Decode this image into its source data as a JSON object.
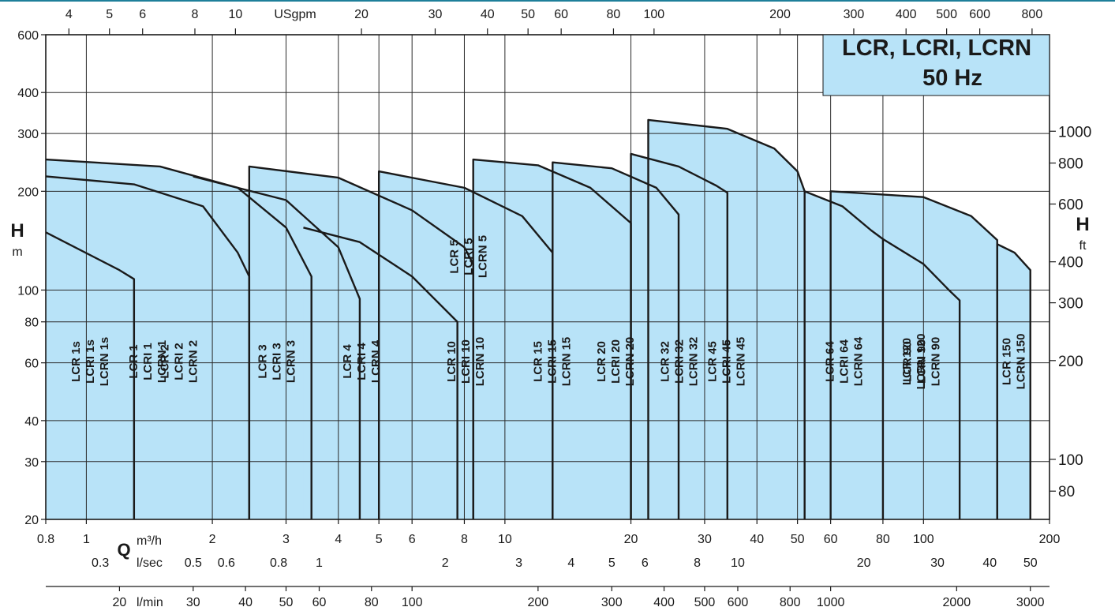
{
  "chart_data": {
    "type": "area",
    "title": [
      "LCR, LCRI, LCRN",
      "50 Hz"
    ],
    "colors": {
      "fill": "#b8e3f8",
      "stroke": "#1a1a1a",
      "grid": "#2a2a2a",
      "title_box": "#b8e3f8",
      "top_rule": "#1e7f9a"
    },
    "grid": true,
    "y_left": {
      "label": "H",
      "unit": "m",
      "scale": "log",
      "range": [
        20,
        600
      ],
      "ticks": [
        600,
        400,
        300,
        200,
        100,
        80,
        60,
        40,
        30,
        20
      ]
    },
    "y_right": {
      "label": "H",
      "unit": "ft",
      "ticks": [
        1000,
        800,
        600,
        400,
        300,
        200,
        100,
        80
      ]
    },
    "x_m3h": {
      "label": "Q",
      "unit": "m³/h",
      "scale": "log",
      "range": [
        0.8,
        200
      ],
      "ticks": [
        0.8,
        1,
        2,
        3,
        4,
        5,
        6,
        8,
        10,
        20,
        30,
        40,
        50,
        60,
        80,
        100,
        200
      ]
    },
    "x_usgpm": {
      "unit": "USgpm",
      "ticks": [
        4,
        5,
        6,
        8,
        10,
        20,
        30,
        40,
        50,
        60,
        80,
        100,
        200,
        300,
        400,
        500,
        600,
        800
      ]
    },
    "x_lsec": {
      "unit": "l/sec",
      "ticks": [
        0.3,
        0.5,
        0.6,
        0.8,
        1,
        2,
        3,
        4,
        5,
        6,
        8,
        10,
        20,
        30,
        40,
        50
      ]
    },
    "x_lmin": {
      "unit": "l/min",
      "ticks": [
        20,
        30,
        40,
        50,
        60,
        80,
        100,
        200,
        300,
        400,
        500,
        600,
        800,
        1000,
        2000,
        3000
      ]
    },
    "series": [
      {
        "name": "LCR 1s / LCRI 1s / LCRN 1s",
        "labels": [
          "LCR 1s",
          "LCRI 1s",
          "LCRN 1s"
        ],
        "q": [
          0.8,
          1.2,
          1.3,
          1.3
        ],
        "h": [
          150,
          115,
          108,
          20
        ]
      },
      {
        "name": "LCR 1 / LCRI 1 / LCRN 1",
        "labels": [
          "LCR 1",
          "LCRI 1",
          "LCRN 1"
        ],
        "q": [
          0.8,
          1.3,
          1.9,
          2.3,
          2.45,
          2.45
        ],
        "h": [
          222,
          210,
          180,
          130,
          110,
          20
        ]
      },
      {
        "name": "LCR 2 / LCRI 2 / LCRN 2",
        "labels": [
          "LCR 2",
          "LCRI 2",
          "LCRN 2"
        ],
        "q": [
          0.8,
          1.5,
          2.3,
          3.0,
          3.45,
          3.45
        ],
        "h": [
          250,
          238,
          205,
          155,
          110,
          20
        ]
      },
      {
        "name": "LCR 3 / LCRI 3 / LCRN 3",
        "labels": [
          "LCR 3",
          "LCRI 3",
          "LCRN 3"
        ],
        "q": [
          1.8,
          3.0,
          4.0,
          4.5,
          4.5
        ],
        "h": [
          222,
          188,
          135,
          94,
          20
        ]
      },
      {
        "name": "LCR 4 / LCRI 4 / LCRN 4",
        "labels": [
          "LCR 4",
          "LCRI 4",
          "LCRN 4"
        ],
        "q": [
          2.45,
          2.45,
          4.0,
          6.0,
          8.0,
          8.4,
          8.4
        ],
        "h": [
          20,
          238,
          220,
          175,
          135,
          120,
          20
        ]
      },
      {
        "name": "LCR 5 / LCRI 5 / LCRN 5",
        "labels": [
          "LCR 5",
          "LCRI 5",
          "LCRN 5"
        ],
        "q": [
          3.3,
          4.5,
          6.0,
          7.7,
          7.7
        ],
        "h": [
          155,
          140,
          110,
          80,
          20
        ]
      },
      {
        "name": "LCR 10 / LCRI 10 / LCRN 10",
        "labels": [
          "LCR 10",
          "LCRI 10",
          "LCRN 10"
        ],
        "q": [
          5.0,
          5.0,
          8.0,
          11.0,
          13.0,
          13.0
        ],
        "h": [
          20,
          230,
          205,
          168,
          130,
          20
        ]
      },
      {
        "name": "LCR 15 / LCRI 15 / LCRN 15",
        "labels": [
          "LCR 15",
          "LCRI 15",
          "LCRN 15"
        ],
        "q": [
          8.4,
          8.4,
          12.0,
          16.0,
          20.0,
          20.0
        ],
        "h": [
          20,
          250,
          240,
          205,
          160,
          20
        ]
      },
      {
        "name": "LCR 20 / LCRI 20 / LCRN 20",
        "labels": [
          "LCR 20",
          "LCRI 20",
          "LCRN 20"
        ],
        "q": [
          13.0,
          13.0,
          18.0,
          23.0,
          26.0,
          26.0
        ],
        "h": [
          20,
          245,
          235,
          205,
          170,
          20
        ]
      },
      {
        "name": "LCR 32 / LCRI 32 / LCRN 32",
        "labels": [
          "LCR 32",
          "LCRI 32",
          "LCRN 32"
        ],
        "q": [
          20.0,
          20.0,
          26.0,
          32.0,
          34.0,
          34.0
        ],
        "h": [
          20,
          260,
          238,
          208,
          198,
          20
        ]
      },
      {
        "name": "LCR 45 / LCRI 45 / LCRN 45",
        "labels": [
          "LCR 45",
          "LCRI 45",
          "LCRN 45"
        ],
        "q": [
          22.0,
          22.0,
          34.0,
          44.0,
          50.0,
          52.0,
          52.0
        ],
        "h": [
          20,
          330,
          310,
          270,
          230,
          200,
          20
        ]
      },
      {
        "name": "LCR 64 / LCRI 64 / LCRN 64",
        "labels": [
          "LCR 64",
          "LCRI 64",
          "LCRN 64"
        ],
        "q": [
          52.0,
          64.0,
          75.0,
          80.0,
          80.0
        ],
        "h": [
          200,
          180,
          152,
          143,
          20
        ]
      },
      {
        "name": "LCR 90 / LCRI 90 / LCRN 90",
        "labels": [
          "LCR 90",
          "LCRI 90",
          "LCRN 90"
        ],
        "q": [
          80.0,
          100.0,
          115.0,
          122.0,
          122.0
        ],
        "h": [
          143,
          120,
          100,
          93,
          20
        ]
      },
      {
        "name": "LCR 120 / LCRN 120",
        "labels": [
          "LCR 120",
          "LCRN 120"
        ],
        "q": [
          60.0,
          60.0,
          100.0,
          130.0,
          150.0,
          150.0
        ],
        "h": [
          20,
          200,
          192,
          168,
          142,
          20
        ]
      },
      {
        "name": "LCR 150 / LCRN 150",
        "labels": [
          "LCR 150",
          "LCRN 150"
        ],
        "q": [
          150.0,
          150.0,
          165.0,
          180.0,
          180.0
        ],
        "h": [
          20,
          138,
          130,
          115,
          20
        ]
      }
    ]
  }
}
